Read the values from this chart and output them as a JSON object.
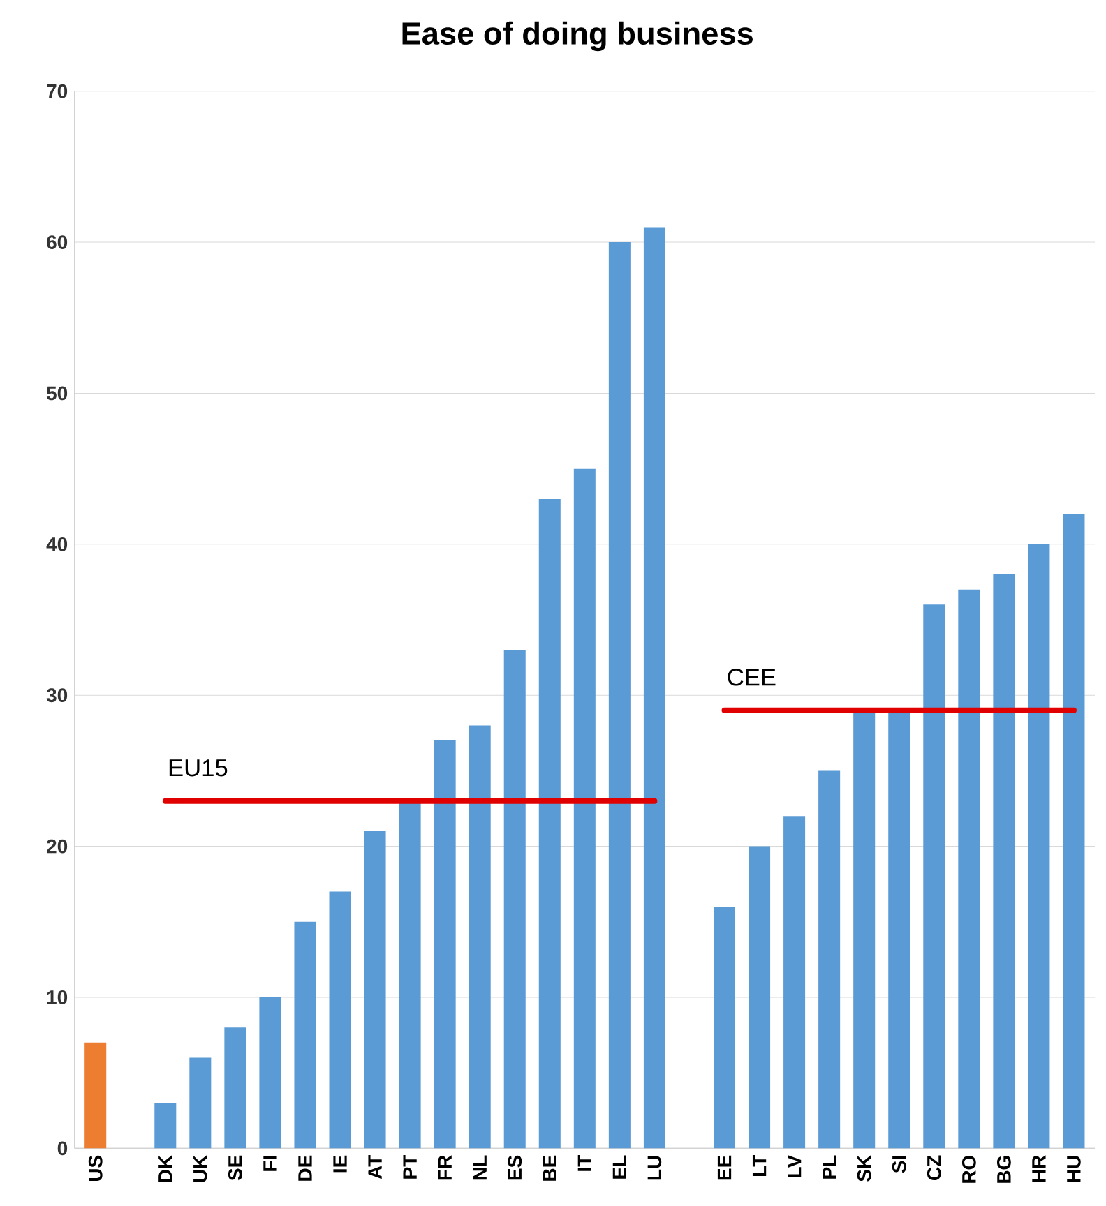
{
  "chart_data": {
    "type": "bar",
    "title": "Ease of doing business",
    "categories": [
      "US",
      null,
      "DK",
      "UK",
      "SE",
      "FI",
      "DE",
      "IE",
      "AT",
      "PT",
      "FR",
      "NL",
      "ES",
      "BE",
      "IT",
      "EL",
      "LU",
      null,
      "EE",
      "LT",
      "LV",
      "PL",
      "SK",
      "SI",
      "CZ",
      "RO",
      "BG",
      "HR",
      "HU"
    ],
    "series": [
      {
        "values": [
          7,
          null,
          3,
          6,
          8,
          10,
          15,
          17,
          21,
          23,
          27,
          28,
          33,
          43,
          45,
          60,
          61,
          null,
          16,
          20,
          22,
          25,
          29,
          29,
          36,
          37,
          38,
          40,
          42
        ],
        "colors": [
          "#ed7d31",
          null,
          "#5b9bd5",
          "#5b9bd5",
          "#5b9bd5",
          "#5b9bd5",
          "#5b9bd5",
          "#5b9bd5",
          "#5b9bd5",
          "#5b9bd5",
          "#5b9bd5",
          "#5b9bd5",
          "#5b9bd5",
          "#5b9bd5",
          "#5b9bd5",
          "#5b9bd5",
          "#5b9bd5",
          null,
          "#5b9bd5",
          "#5b9bd5",
          "#5b9bd5",
          "#5b9bd5",
          "#5b9bd5",
          "#5b9bd5",
          "#5b9bd5",
          "#5b9bd5",
          "#5b9bd5",
          "#5b9bd5",
          "#5b9bd5"
        ]
      },
      {
        "type": "line",
        "name": "EU15",
        "color": "#e00000",
        "values": [
          null,
          null,
          23,
          23,
          23,
          23,
          23,
          23,
          23,
          23,
          23,
          23,
          23,
          23,
          23,
          23,
          23,
          null,
          null,
          null,
          null,
          null,
          null,
          null,
          null,
          null,
          null,
          null,
          null
        ]
      },
      {
        "type": "line",
        "name": "CEE",
        "color": "#e00000",
        "values": [
          null,
          null,
          null,
          null,
          null,
          null,
          null,
          null,
          null,
          null,
          null,
          null,
          null,
          null,
          null,
          null,
          null,
          null,
          29,
          29,
          29,
          29,
          29,
          29,
          29,
          29,
          29,
          29,
          29
        ]
      }
    ],
    "ylim": [
      0,
      70
    ],
    "yticks": [
      0,
      10,
      20,
      30,
      40,
      50,
      60,
      70
    ],
    "grid": "y"
  }
}
